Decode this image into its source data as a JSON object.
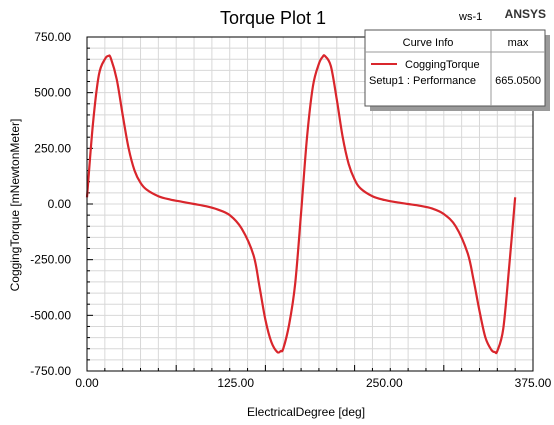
{
  "header": {
    "title": "Torque Plot 1",
    "project": "ws-1",
    "brand": "ANSYS"
  },
  "legend": {
    "col_curve_info": "Curve Info",
    "col_max": "max",
    "curve_name": "CoggingTorque",
    "curve_setup": "Setup1 : Performance",
    "curve_max": "665.0500"
  },
  "chart_data": {
    "type": "line",
    "title": "Torque Plot 1",
    "xlabel": "ElectricalDegree [deg]",
    "ylabel": "CoggingTorque [mNewtonMeter]",
    "xlim": [
      0,
      375
    ],
    "ylim": [
      -750,
      750
    ],
    "x_ticks": [
      "0.00",
      "125.00",
      "250.00",
      "375.00"
    ],
    "y_ticks": [
      "750.00",
      "500.00",
      "250.00",
      "0.00",
      "-250.00",
      "-500.00",
      "-750.00"
    ],
    "grid": true,
    "legend_position": "top-right",
    "colors": {
      "series": "#d9262c",
      "grid": "#d8d8d8",
      "axis": "#000000"
    },
    "series": [
      {
        "name": "CoggingTorque",
        "x": [
          0,
          5,
          10,
          15,
          18,
          20,
          25,
          30,
          35,
          40,
          45,
          50,
          60,
          70,
          80,
          90,
          100,
          110,
          120,
          130,
          140,
          145,
          150,
          155,
          160,
          163,
          165,
          170,
          175,
          180,
          185,
          190,
          195,
          198,
          200,
          205,
          210,
          215,
          220,
          225,
          230,
          240,
          250,
          260,
          270,
          280,
          290,
          300,
          310,
          320,
          325,
          330,
          335,
          340,
          343,
          345,
          350,
          355,
          360
        ],
        "y": [
          30,
          360,
          580,
          650,
          665,
          655,
          560,
          400,
          250,
          150,
          95,
          65,
          35,
          20,
          10,
          0,
          -10,
          -25,
          -50,
          -110,
          -230,
          -370,
          -520,
          -620,
          -665,
          -660,
          -650,
          -540,
          -360,
          -40,
          300,
          530,
          630,
          660,
          665,
          620,
          470,
          300,
          180,
          110,
          70,
          35,
          18,
          8,
          0,
          -8,
          -20,
          -45,
          -100,
          -220,
          -340,
          -480,
          -600,
          -655,
          -665,
          -660,
          -560,
          -280,
          30
        ]
      }
    ]
  }
}
